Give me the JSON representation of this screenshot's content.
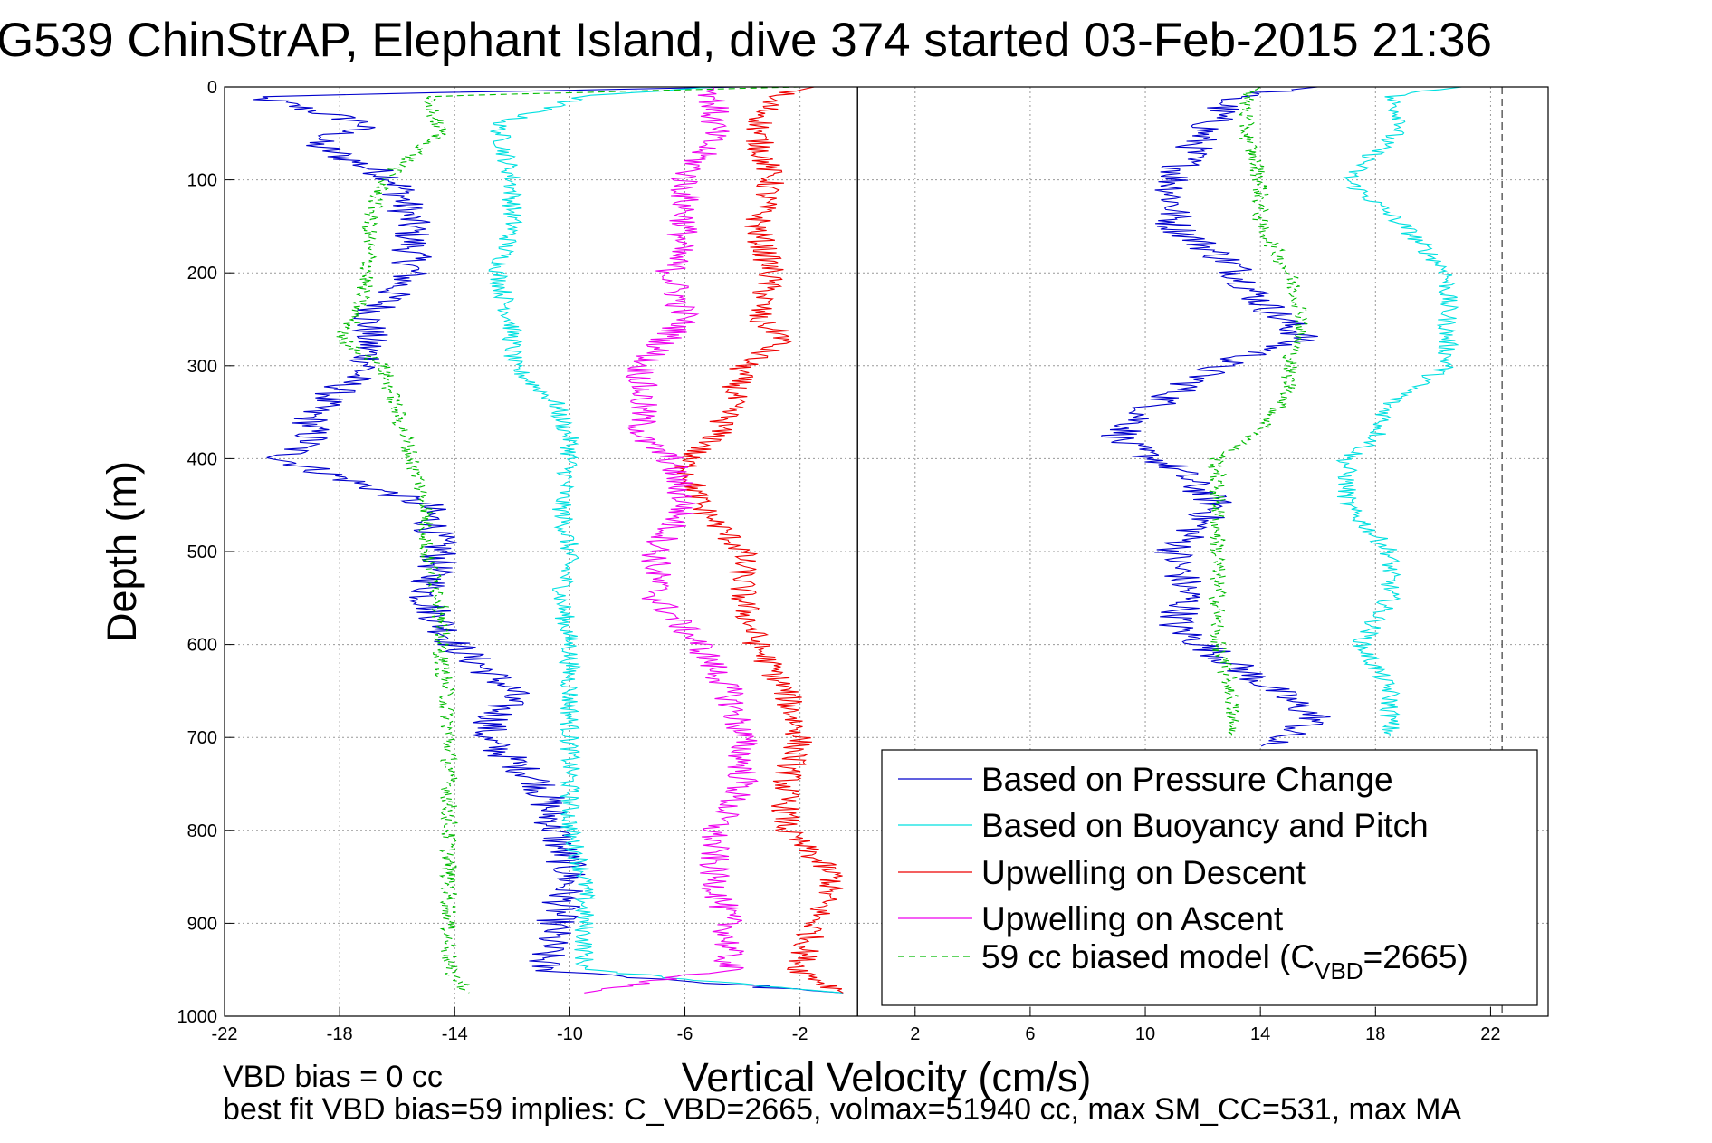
{
  "chart_data": {
    "type": "line",
    "title": "G539 ChinStrAP, Elephant Island, dive 374 started 03-Feb-2015 21:36",
    "xlabel": "Vertical Velocity (cm/s)",
    "ylabel": "Depth (m)",
    "xlim": [
      -22,
      24
    ],
    "ylim": [
      0,
      1000
    ],
    "y_reversed": true,
    "x_ticks": [
      -22,
      -18,
      -14,
      -10,
      -6,
      -2,
      2,
      6,
      10,
      14,
      18,
      22
    ],
    "y_ticks": [
      0,
      100,
      200,
      300,
      400,
      500,
      600,
      700,
      800,
      900,
      1000
    ],
    "grid": true,
    "legend_position": "bottom-right",
    "vertical_lines": [
      {
        "x": 0,
        "style": "solid",
        "color": "#000000"
      },
      {
        "x": 22.4,
        "style": "dashed",
        "color": "#555555"
      }
    ],
    "series": [
      {
        "name": "Based on Pressure Change",
        "color": "#0000cc",
        "dash": "",
        "noise": 0.7,
        "segments": [
          {
            "depth": [
              0,
              10,
              40,
              60,
              100,
              150,
              200,
              250,
              300,
              350,
              380,
              400,
              450,
              500,
              550,
              600,
              650,
              700,
              750,
              800,
              850,
              900,
              950,
              975
            ],
            "v": [
              -4,
              -21,
              -17,
              -19,
              -16,
              -15.5,
              -15.5,
              -17,
              -17,
              -19,
              -19,
              -20,
              -15,
              -14.5,
              -15,
              -14,
              -12,
              -13,
              -11,
              -10.5,
              -10,
              -10.5,
              -11,
              -0.5
            ]
          },
          {
            "depth": [
              0,
              10,
              50,
              100,
              150,
              190,
              230,
              270,
              300,
              350,
              380,
              410,
              450,
              500,
              550,
              580,
              620,
              650,
              680,
              710
            ],
            "v": [
              16,
              13,
              12,
              11,
              11,
              13,
              14,
              15.5,
              12.5,
              10,
              9,
              11,
              12.5,
              11,
              11.5,
              11,
              13,
              14.5,
              16,
              14
            ]
          }
        ]
      },
      {
        "name": "Based on Buoyancy and Pitch",
        "color": "#00e0e0",
        "dash": "",
        "noise": 0.35,
        "segments": [
          {
            "depth": [
              0,
              10,
              40,
              100,
              150,
              200,
              260,
              300,
              340,
              380,
              400,
              450,
              500,
              550,
              600,
              650,
              700,
              750,
              800,
              850,
              900,
              950,
              975
            ],
            "v": [
              -5,
              -9.5,
              -12.5,
              -12,
              -12,
              -12.5,
              -12,
              -12,
              -10.5,
              -10,
              -10,
              -10.3,
              -10,
              -10.3,
              -10,
              -10,
              -10,
              -10,
              -10,
              -9.5,
              -9.5,
              -9.5,
              -0.5
            ]
          },
          {
            "depth": [
              0,
              10,
              40,
              100,
              150,
              200,
              250,
              300,
              340,
              380,
              400,
              450,
              500,
              550,
              600,
              650,
              700
            ],
            "v": [
              21,
              18.5,
              19,
              17,
              19,
              20.5,
              20.5,
              20.5,
              18.5,
              18,
              17,
              17,
              18.5,
              18.5,
              17.5,
              18.5,
              18.5
            ]
          }
        ]
      },
      {
        "name": "Upwelling on Descent",
        "color": "#ee0000",
        "dash": "",
        "noise": 0.5,
        "segments": [
          {
            "depth": [
              0,
              10,
              50,
              100,
              150,
              200,
              250,
              270,
              300,
              350,
              380,
              400,
              450,
              500,
              550,
              600,
              650,
              700,
              750,
              800,
              850,
              900,
              950,
              975
            ],
            "v": [
              -1.5,
              -3,
              -3.5,
              -3,
              -3.5,
              -3,
              -3.5,
              -2.5,
              -4,
              -4.5,
              -5,
              -6,
              -5.5,
              -4,
              -4,
              -3.5,
              -2.5,
              -2,
              -2.5,
              -2.5,
              -0.8,
              -1.5,
              -2,
              -0.5
            ]
          }
        ]
      },
      {
        "name": "Upwelling on Ascent",
        "color": "#ee00ee",
        "dash": "",
        "noise": 0.55,
        "segments": [
          {
            "depth": [
              0,
              10,
              50,
              100,
              150,
              200,
              250,
              300,
              350,
              380,
              400,
              450,
              500,
              550,
              600,
              650,
              700,
              750,
              800,
              850,
              900,
              950,
              975
            ],
            "v": [
              -5,
              -5,
              -5,
              -6,
              -6,
              -6.5,
              -6,
              -7.5,
              -7.5,
              -7.5,
              -6.5,
              -6,
              -7,
              -7,
              -5.5,
              -4.5,
              -4,
              -4,
              -5,
              -5,
              -4.5,
              -4.5,
              -9.5
            ]
          }
        ]
      },
      {
        "name": "59 cc biased model (C",
        "name_sub": "VBD",
        "name_suffix": "=2665)",
        "color": "#00bb00",
        "dash": "7,5",
        "noise": 0.3,
        "segments": [
          {
            "depth": [
              0,
              10,
              50,
              100,
              150,
              200,
              250,
              270,
              300,
              350,
              400,
              450,
              500,
              550,
              600,
              650,
              700,
              750,
              800,
              850,
              900,
              950,
              975
            ],
            "v": [
              -2,
              -15,
              -14.5,
              -16.5,
              -17,
              -17,
              -17.5,
              -18,
              -16.5,
              -16,
              -15.5,
              -15,
              -15,
              -14.5,
              -14.5,
              -14.3,
              -14.2,
              -14.2,
              -14.2,
              -14.2,
              -14.2,
              -14.2,
              -13.5
            ]
          },
          {
            "depth": [
              0,
              10,
              50,
              100,
              150,
              200,
              250,
              300,
              330,
              370,
              400,
              450,
              500,
              550,
              600,
              650,
              700
            ],
            "v": [
              14,
              13.5,
              13.5,
              14,
              14,
              15,
              15.5,
              15,
              15,
              14,
              12.5,
              12.5,
              12.5,
              12.5,
              12.5,
              13,
              13
            ]
          }
        ]
      }
    ]
  },
  "footer": {
    "line1": "VBD bias = 0 cc",
    "line2": "best fit VBD bias=59 implies: C_VBD=2665, volmax=51940 cc, max SM_CC=531, max MA"
  }
}
